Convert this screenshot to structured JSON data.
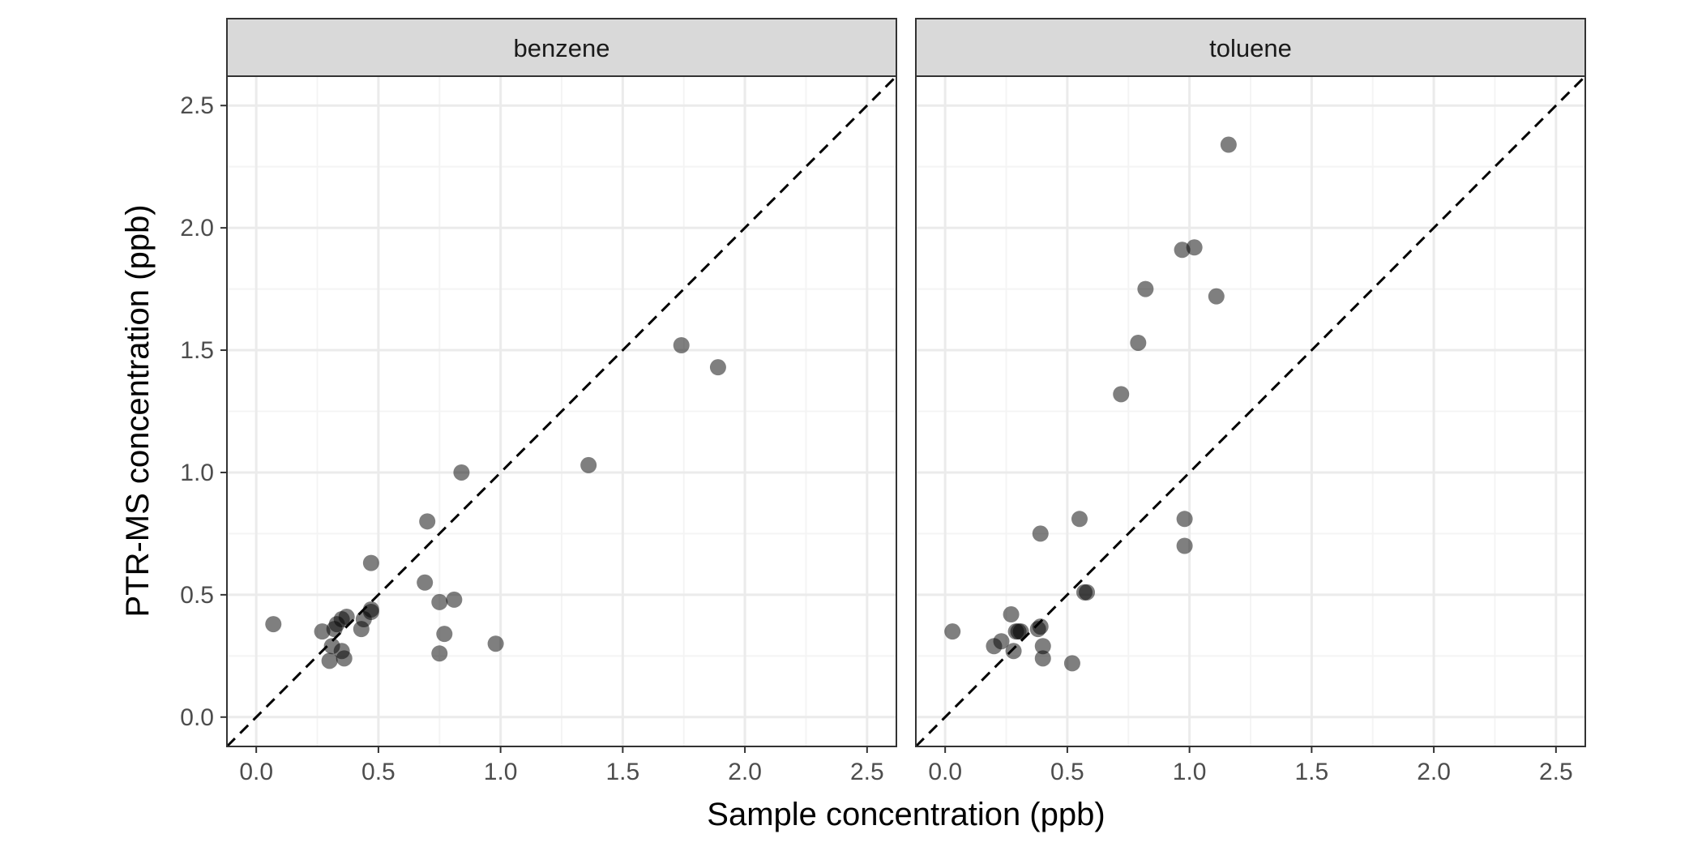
{
  "chart_data": {
    "type": "scatter",
    "xlabel": "Sample concentration (ppb)",
    "ylabel": "PTR-MS concentration (ppb)",
    "xlim": [
      -0.12,
      2.62
    ],
    "ylim": [
      -0.12,
      2.62
    ],
    "xticks": [
      "0.0",
      "0.5",
      "1.0",
      "1.5",
      "2.0",
      "2.5"
    ],
    "yticks": [
      "0.0",
      "0.5",
      "1.0",
      "1.5",
      "2.0",
      "2.5"
    ],
    "grid": true,
    "reference_line": {
      "type": "identity",
      "style": "dashed"
    },
    "colors": {
      "point": "#000000",
      "point_opacity": 0.5,
      "strip_fill": "#d9d9d9",
      "grid_major": "#ebebeb",
      "grid_minor": "#f4f4f4",
      "frame": "#333333"
    },
    "panels": [
      {
        "name": "benzene",
        "points": [
          {
            "x": 0.07,
            "y": 0.38
          },
          {
            "x": 0.27,
            "y": 0.35
          },
          {
            "x": 0.3,
            "y": 0.23
          },
          {
            "x": 0.31,
            "y": 0.29
          },
          {
            "x": 0.32,
            "y": 0.36
          },
          {
            "x": 0.33,
            "y": 0.38
          },
          {
            "x": 0.35,
            "y": 0.27
          },
          {
            "x": 0.36,
            "y": 0.24
          },
          {
            "x": 0.35,
            "y": 0.4
          },
          {
            "x": 0.37,
            "y": 0.41
          },
          {
            "x": 0.43,
            "y": 0.36
          },
          {
            "x": 0.44,
            "y": 0.4
          },
          {
            "x": 0.47,
            "y": 0.43
          },
          {
            "x": 0.47,
            "y": 0.44
          },
          {
            "x": 0.47,
            "y": 0.63
          },
          {
            "x": 0.69,
            "y": 0.55
          },
          {
            "x": 0.7,
            "y": 0.8
          },
          {
            "x": 0.75,
            "y": 0.47
          },
          {
            "x": 0.75,
            "y": 0.26
          },
          {
            "x": 0.77,
            "y": 0.34
          },
          {
            "x": 0.81,
            "y": 0.48
          },
          {
            "x": 0.84,
            "y": 1.0
          },
          {
            "x": 0.98,
            "y": 0.3
          },
          {
            "x": 1.36,
            "y": 1.03
          },
          {
            "x": 1.74,
            "y": 1.52
          },
          {
            "x": 1.89,
            "y": 1.43
          }
        ]
      },
      {
        "name": "toluene",
        "points": [
          {
            "x": 0.03,
            "y": 0.35
          },
          {
            "x": 0.2,
            "y": 0.29
          },
          {
            "x": 0.23,
            "y": 0.31
          },
          {
            "x": 0.27,
            "y": 0.42
          },
          {
            "x": 0.28,
            "y": 0.27
          },
          {
            "x": 0.29,
            "y": 0.35
          },
          {
            "x": 0.3,
            "y": 0.35
          },
          {
            "x": 0.31,
            "y": 0.35
          },
          {
            "x": 0.38,
            "y": 0.36
          },
          {
            "x": 0.39,
            "y": 0.37
          },
          {
            "x": 0.4,
            "y": 0.29
          },
          {
            "x": 0.4,
            "y": 0.24
          },
          {
            "x": 0.39,
            "y": 0.75
          },
          {
            "x": 0.52,
            "y": 0.22
          },
          {
            "x": 0.55,
            "y": 0.81
          },
          {
            "x": 0.57,
            "y": 0.51
          },
          {
            "x": 0.58,
            "y": 0.51
          },
          {
            "x": 0.72,
            "y": 1.32
          },
          {
            "x": 0.79,
            "y": 1.53
          },
          {
            "x": 0.82,
            "y": 1.75
          },
          {
            "x": 0.98,
            "y": 0.81
          },
          {
            "x": 0.98,
            "y": 0.7
          },
          {
            "x": 0.97,
            "y": 1.91
          },
          {
            "x": 1.02,
            "y": 1.92
          },
          {
            "x": 1.11,
            "y": 1.72
          },
          {
            "x": 1.16,
            "y": 2.34
          }
        ]
      }
    ]
  }
}
